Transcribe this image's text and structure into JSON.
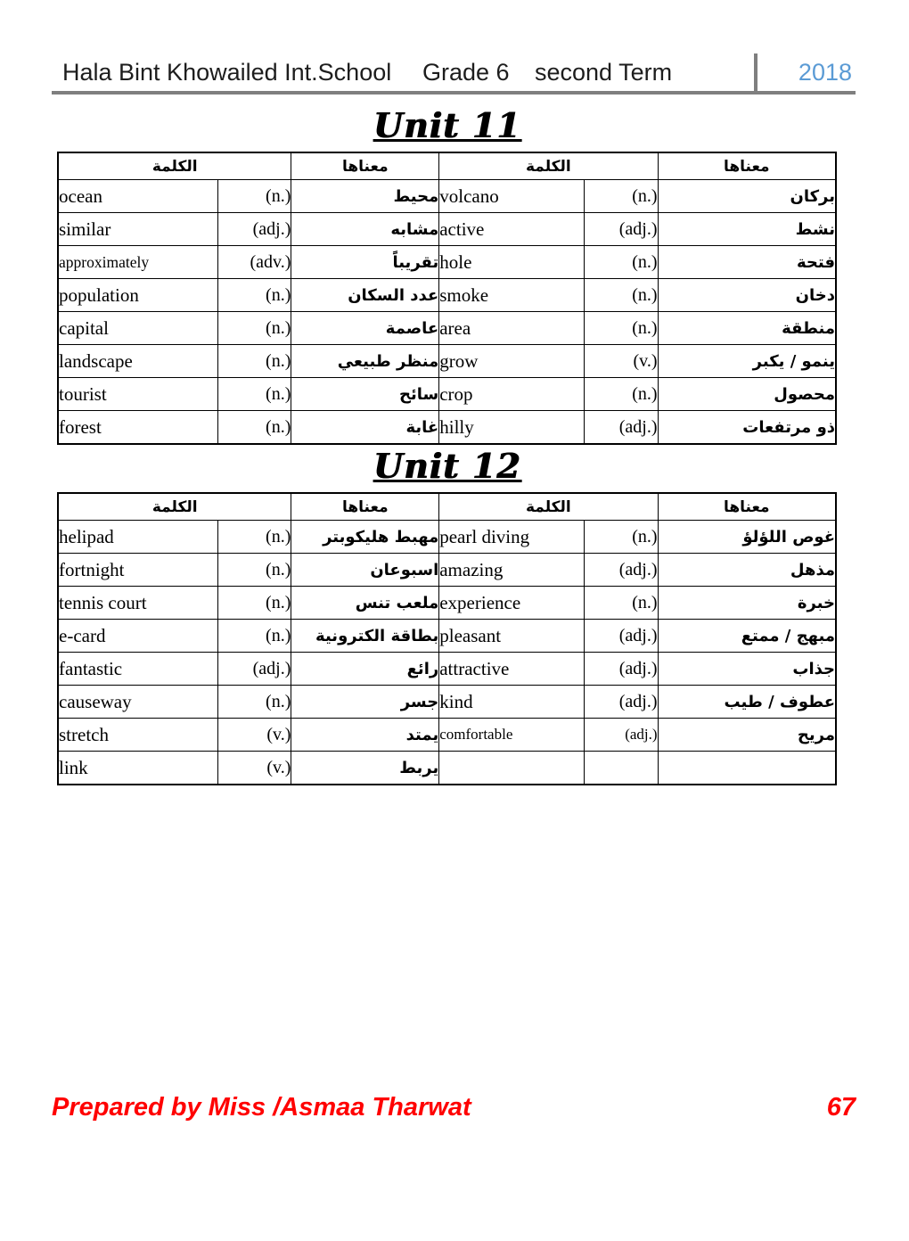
{
  "header": {
    "school": "Hala Bint Khowailed Int.School",
    "grade": "Grade 6",
    "term": "second Term",
    "year": "2018",
    "year_color": "#5b9bd5",
    "rule_color": "#7f7f7f"
  },
  "table_headers": {
    "word": "الكلمة",
    "meaning": "معناها"
  },
  "units": [
    {
      "title": "Unit 11",
      "rows": [
        {
          "left": {
            "word": "ocean",
            "pos": "(n.)",
            "meaning": "محيط"
          },
          "right": {
            "word": "volcano",
            "pos": "(n.)",
            "meaning": "بركان"
          }
        },
        {
          "left": {
            "word": "similar",
            "pos": "(adj.)",
            "meaning": "مشابه"
          },
          "right": {
            "word": "active",
            "pos": "(adj.)",
            "meaning": "نشط"
          }
        },
        {
          "left": {
            "word": "approximately",
            "pos": "(adv.)",
            "meaning": "تقريباً"
          },
          "right": {
            "word": "hole",
            "pos": "(n.)",
            "meaning": "فتحة"
          }
        },
        {
          "left": {
            "word": "population",
            "pos": "(n.)",
            "meaning": "عدد السكان"
          },
          "right": {
            "word": "smoke",
            "pos": "(n.)",
            "meaning": "دخان"
          }
        },
        {
          "left": {
            "word": "capital",
            "pos": "(n.)",
            "meaning": "عاصمة"
          },
          "right": {
            "word": "area",
            "pos": "(n.)",
            "meaning": "منطقة"
          }
        },
        {
          "left": {
            "word": "landscape",
            "pos": "(n.)",
            "meaning": "منظر طبيعي"
          },
          "right": {
            "word": "grow",
            "pos": "(v.)",
            "meaning": "ينمو / يكبر"
          }
        },
        {
          "left": {
            "word": "tourist",
            "pos": "(n.)",
            "meaning": "سائح"
          },
          "right": {
            "word": "crop",
            "pos": "(n.)",
            "meaning": "محصول"
          }
        },
        {
          "left": {
            "word": "forest",
            "pos": "(n.)",
            "meaning": "غابة"
          },
          "right": {
            "word": "hilly",
            "pos": "(adj.)",
            "meaning": "ذو مرتفعات"
          }
        }
      ]
    },
    {
      "title": "Unit 12",
      "rows": [
        {
          "left": {
            "word": "helipad",
            "pos": "(n.)",
            "meaning": "مهبط هليكوبتر"
          },
          "right": {
            "word": "pearl diving",
            "pos": "(n.)",
            "meaning": "غوص اللؤلؤ"
          }
        },
        {
          "left": {
            "word": "fortnight",
            "pos": "(n.)",
            "meaning": "اسبوعان"
          },
          "right": {
            "word": "amazing",
            "pos": "(adj.)",
            "meaning": "مذهل"
          }
        },
        {
          "left": {
            "word": "tennis court",
            "pos": "(n.)",
            "meaning": "ملعب تنس"
          },
          "right": {
            "word": "experience",
            "pos": "(n.)",
            "meaning": "خبرة"
          }
        },
        {
          "left": {
            "word": "e-card",
            "pos": "(n.)",
            "meaning": "بطاقة الكترونية"
          },
          "right": {
            "word": "pleasant",
            "pos": "(adj.)",
            "meaning": "مبهج / ممتع"
          }
        },
        {
          "left": {
            "word": "fantastic",
            "pos": "(adj.)",
            "meaning": "رائع"
          },
          "right": {
            "word": "attractive",
            "pos": "(adj.)",
            "meaning": "جذاب"
          }
        },
        {
          "left": {
            "word": "causeway",
            "pos": "(n.)",
            "meaning": "جسر"
          },
          "right": {
            "word": "kind",
            "pos": "(adj.)",
            "meaning": "عطوف / طيب"
          }
        },
        {
          "left": {
            "word": "stretch",
            "pos": "(v.)",
            "meaning": "يمتد"
          },
          "right": {
            "word": "comfortable",
            "pos": "(adj.)",
            "meaning": "مريح"
          }
        },
        {
          "left": {
            "word": "link",
            "pos": "(v.)",
            "meaning": "يربط"
          },
          "right": {
            "word": "",
            "pos": "",
            "meaning": ""
          }
        }
      ]
    }
  ],
  "footer": {
    "prepared_by": "Prepared by Miss /Asmaa Tharwat",
    "page_number": "67",
    "color": "#ff0000"
  }
}
